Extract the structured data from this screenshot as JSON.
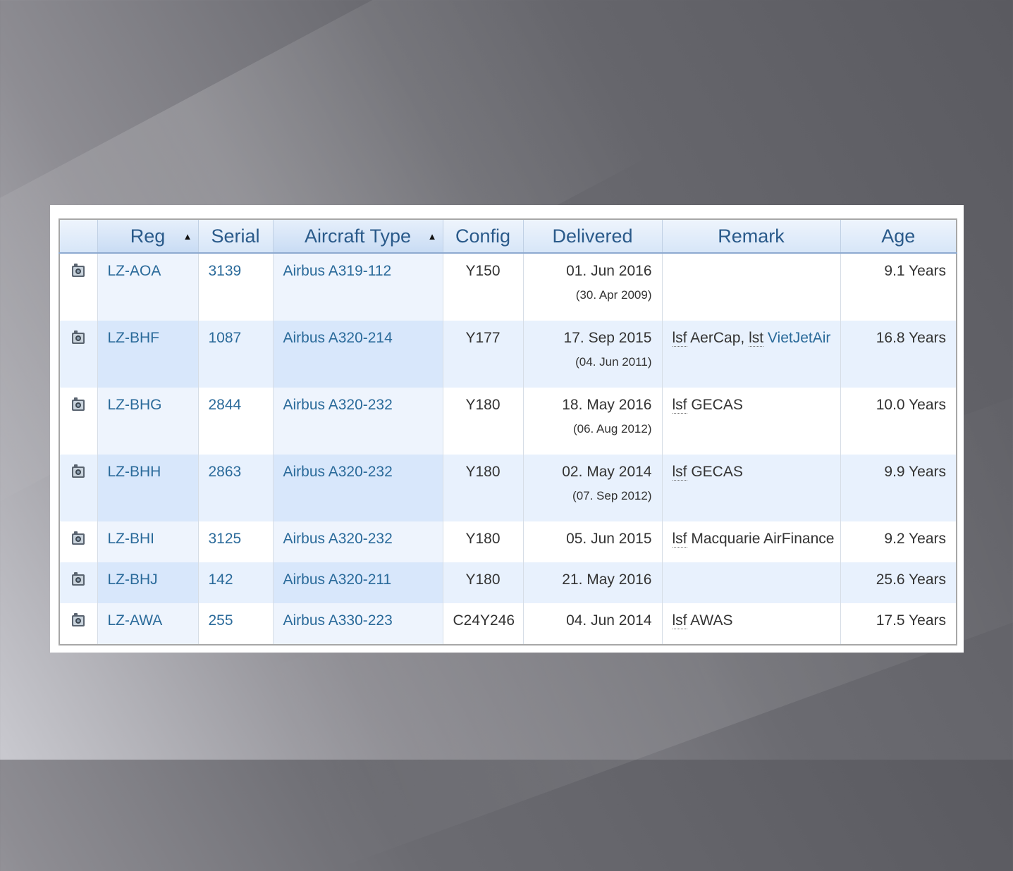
{
  "table": {
    "columns": [
      {
        "key": "photo",
        "label": ""
      },
      {
        "key": "reg",
        "label": "Reg",
        "sorted": true
      },
      {
        "key": "serial",
        "label": "Serial"
      },
      {
        "key": "type",
        "label": "Aircraft Type",
        "sorted": true
      },
      {
        "key": "config",
        "label": "Config"
      },
      {
        "key": "delivered",
        "label": "Delivered"
      },
      {
        "key": "remark",
        "label": "Remark"
      },
      {
        "key": "age",
        "label": "Age"
      }
    ],
    "sort_arrow": "▲",
    "rows": [
      {
        "reg": "LZ-AOA",
        "serial": "3139",
        "type": "Airbus A319-112",
        "config": "Y150",
        "delivered": "01. Jun 2016",
        "delivered_sub": "(30. Apr 2009)",
        "remark_parts": [],
        "age": "9.1 Years"
      },
      {
        "reg": "LZ-BHF",
        "serial": "1087",
        "type": "Airbus A320-214",
        "config": "Y177",
        "delivered": "17. Sep 2015",
        "delivered_sub": "(04. Jun 2011)",
        "remark_parts": [
          {
            "abbr": "lsf",
            "text": " AerCap, "
          },
          {
            "abbr": "lst",
            "text": " ",
            "link": "VietJetAir"
          }
        ],
        "age": "16.8 Years"
      },
      {
        "reg": "LZ-BHG",
        "serial": "2844",
        "type": "Airbus A320-232",
        "config": "Y180",
        "delivered": "18. May 2016",
        "delivered_sub": "(06. Aug 2012)",
        "remark_parts": [
          {
            "abbr": "lsf",
            "text": " GECAS"
          }
        ],
        "age": "10.0 Years"
      },
      {
        "reg": "LZ-BHH",
        "serial": "2863",
        "type": "Airbus A320-232",
        "config": "Y180",
        "delivered": "02. May 2014",
        "delivered_sub": "(07. Sep 2012)",
        "remark_parts": [
          {
            "abbr": "lsf",
            "text": " GECAS"
          }
        ],
        "age": "9.9 Years"
      },
      {
        "reg": "LZ-BHI",
        "serial": "3125",
        "type": "Airbus A320-232",
        "config": "Y180",
        "delivered": "05. Jun 2015",
        "delivered_sub": "",
        "remark_parts": [
          {
            "abbr": "lsf",
            "text": " Macquarie AirFinance"
          }
        ],
        "age": "9.2 Years"
      },
      {
        "reg": "LZ-BHJ",
        "serial": "142",
        "type": "Airbus A320-211",
        "config": "Y180",
        "delivered": "21. May 2016",
        "delivered_sub": "",
        "remark_parts": [],
        "age": "25.6 Years"
      },
      {
        "reg": "LZ-AWA",
        "serial": "255",
        "type": "Airbus A330-223",
        "config": "C24Y246",
        "delivered": "04. Jun 2014",
        "delivered_sub": "",
        "remark_parts": [
          {
            "abbr": "lsf",
            "text": " AWAS"
          }
        ],
        "age": "17.5 Years"
      }
    ]
  },
  "icons": {
    "photo": "camera-icon"
  },
  "colors": {
    "header_text": "#2a5a8a",
    "link": "#2a6a9a",
    "alt_row": "#e8f1fd"
  }
}
